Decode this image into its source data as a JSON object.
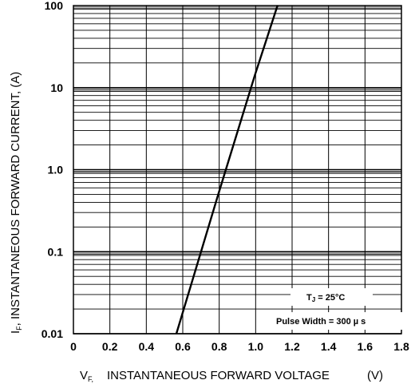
{
  "chart_data": {
    "type": "line",
    "title": "",
    "xlabel": "V_F, INSTANTANEOUS FORWARD VOLTAGE (V)",
    "xlabel_parts": {
      "symbol": "V",
      "subscript": "F,",
      "text": "INSTANTANEOUS FORWARD VOLTAGE",
      "unit": "(V)"
    },
    "ylabel": "I_F, INSTANTANEOUS FORWARD CURRENT, (A)",
    "ylabel_parts": {
      "symbol": "I",
      "subscript": "F",
      "text": ", INSTANTANEOUS FORWARD CURRENT, (A)"
    },
    "xlim": [
      0,
      1.8
    ],
    "ylim": [
      0.01,
      100
    ],
    "yscale": "log",
    "grid": true,
    "x_ticks": [
      0,
      0.2,
      0.4,
      0.6,
      0.8,
      1.0,
      1.2,
      1.4,
      1.6,
      1.8
    ],
    "x_tick_labels": [
      "0",
      "0.2",
      "0.4",
      "0.6",
      "0.8",
      "1.0",
      "1.2",
      "1.4",
      "1.6",
      "1.8"
    ],
    "y_ticks": [
      0.01,
      0.1,
      1.0,
      10,
      100
    ],
    "y_tick_labels": [
      "0.01",
      "0.1",
      "1.0",
      "10",
      "100"
    ],
    "series": [
      {
        "x": [
          0.565,
          0.795,
          0.995,
          1.12
        ],
        "y": [
          0.01,
          0.5,
          14,
          100
        ]
      }
    ],
    "annotations": {
      "temperature": {
        "prefix": "T",
        "sub": "J",
        "text": " = 25°C"
      },
      "pulse_width": "Pulse Width = 300 µ s"
    },
    "colors": {
      "line": "#000000",
      "grid": "#000000",
      "background": "#ffffff"
    }
  }
}
